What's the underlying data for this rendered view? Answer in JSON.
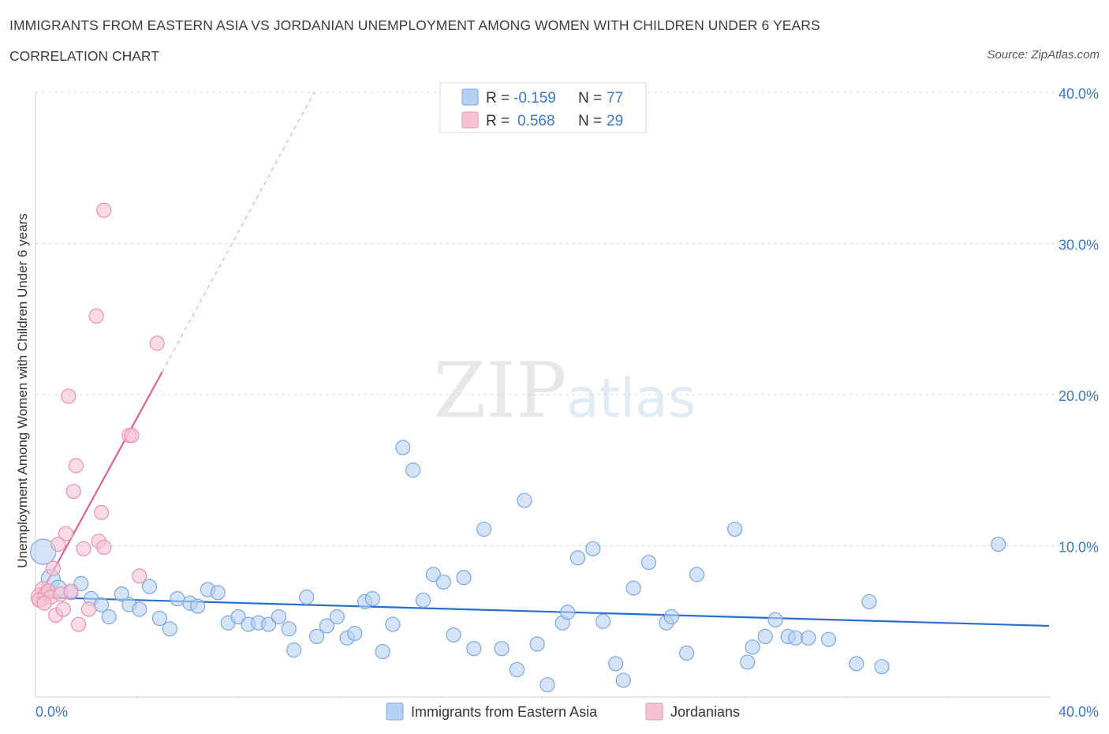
{
  "header": {
    "title": "IMMIGRANTS FROM EASTERN ASIA VS JORDANIAN UNEMPLOYMENT AMONG WOMEN WITH CHILDREN UNDER 6 YEARS",
    "subtitle": "CORRELATION CHART",
    "source": "Source: ZipAtlas.com"
  },
  "watermark": {
    "zip": "ZIP",
    "atlas": "atlas"
  },
  "colors": {
    "blue": "#7ba7e0",
    "blue_fill": "#b7d0f3",
    "blue_line": "#2a6fcf",
    "pink": "#ec8fae",
    "pink_fill": "#f6c3d4",
    "pink_line": "#e0638f",
    "grid": "#d9d9d9",
    "tick_text": "#3b78c9"
  },
  "legend": {
    "r_label": "R =",
    "n_label": "N =",
    "rows": [
      {
        "r": "-0.159",
        "n": "77"
      },
      {
        "r": "0.568",
        "n": "29"
      }
    ]
  },
  "bottom_legend": [
    {
      "label": "Immigrants from Eastern Asia"
    },
    {
      "label": "Jordanians"
    }
  ],
  "chart_data": {
    "type": "scatter",
    "ylabel": "Unemployment Among Women with Children Under 6 years",
    "xlim": [
      0,
      40
    ],
    "ylim": [
      0,
      40
    ],
    "x_tick_labels": [
      "0.0%",
      "40.0%"
    ],
    "y_tick_labels": [
      "10.0%",
      "20.0%",
      "30.0%",
      "40.0%"
    ],
    "y_ticks": [
      10,
      20,
      30,
      40
    ],
    "grid": true,
    "series": [
      {
        "name": "Immigrants from Eastern Asia",
        "R": -0.159,
        "N": 77,
        "trend": {
          "x": [
            0,
            40
          ],
          "y": [
            6.6,
            4.7
          ]
        },
        "points": [
          [
            0.3,
            9.6,
            16
          ],
          [
            0.6,
            7.8,
            12
          ],
          [
            0.9,
            7.2,
            10
          ],
          [
            1.4,
            6.9,
            9
          ],
          [
            1.8,
            7.5,
            9
          ],
          [
            2.2,
            6.5,
            9
          ],
          [
            2.6,
            6.1,
            9
          ],
          [
            2.9,
            5.3,
            9
          ],
          [
            3.4,
            6.8,
            9
          ],
          [
            3.7,
            6.1,
            9
          ],
          [
            4.1,
            5.8,
            9
          ],
          [
            4.5,
            7.3,
            9
          ],
          [
            4.9,
            5.2,
            9
          ],
          [
            5.3,
            4.5,
            9
          ],
          [
            5.6,
            6.5,
            9
          ],
          [
            6.1,
            6.2,
            9
          ],
          [
            6.4,
            6.0,
            9
          ],
          [
            6.8,
            7.1,
            9
          ],
          [
            7.2,
            6.9,
            9
          ],
          [
            7.6,
            4.9,
            9
          ],
          [
            8.0,
            5.3,
            9
          ],
          [
            8.4,
            4.8,
            9
          ],
          [
            8.8,
            4.9,
            9
          ],
          [
            9.2,
            4.8,
            9
          ],
          [
            9.6,
            5.3,
            9
          ],
          [
            10.0,
            4.5,
            9
          ],
          [
            10.2,
            3.1,
            9
          ],
          [
            10.7,
            6.6,
            9
          ],
          [
            11.1,
            4.0,
            9
          ],
          [
            11.5,
            4.7,
            9
          ],
          [
            11.9,
            5.3,
            9
          ],
          [
            12.3,
            3.9,
            9
          ],
          [
            12.6,
            4.2,
            9
          ],
          [
            13.0,
            6.3,
            9
          ],
          [
            13.3,
            6.5,
            9
          ],
          [
            13.7,
            3.0,
            9
          ],
          [
            14.1,
            4.8,
            9
          ],
          [
            14.5,
            16.5,
            9
          ],
          [
            14.9,
            15.0,
            9
          ],
          [
            15.3,
            6.4,
            9
          ],
          [
            15.7,
            8.1,
            9
          ],
          [
            16.1,
            7.6,
            9
          ],
          [
            16.5,
            4.1,
            9
          ],
          [
            16.9,
            7.9,
            9
          ],
          [
            17.3,
            3.2,
            9
          ],
          [
            17.7,
            11.1,
            9
          ],
          [
            18.4,
            3.2,
            9
          ],
          [
            19.0,
            1.8,
            9
          ],
          [
            19.3,
            13.0,
            9
          ],
          [
            19.8,
            3.5,
            9
          ],
          [
            20.2,
            0.8,
            9
          ],
          [
            20.8,
            4.9,
            9
          ],
          [
            21.0,
            5.6,
            9
          ],
          [
            21.4,
            9.2,
            9
          ],
          [
            22.0,
            9.8,
            9
          ],
          [
            22.4,
            5.0,
            9
          ],
          [
            22.9,
            2.2,
            9
          ],
          [
            23.2,
            1.1,
            9
          ],
          [
            23.6,
            7.2,
            9
          ],
          [
            24.2,
            8.9,
            9
          ],
          [
            24.9,
            4.9,
            9
          ],
          [
            25.1,
            5.3,
            9
          ],
          [
            25.7,
            2.9,
            9
          ],
          [
            26.1,
            8.1,
            9
          ],
          [
            27.6,
            11.1,
            9
          ],
          [
            28.1,
            2.3,
            9
          ],
          [
            28.3,
            3.3,
            9
          ],
          [
            28.8,
            4.0,
            9
          ],
          [
            29.2,
            5.1,
            9
          ],
          [
            29.7,
            4.0,
            9
          ],
          [
            30.0,
            3.9,
            9
          ],
          [
            30.5,
            3.9,
            9
          ],
          [
            31.3,
            3.8,
            9
          ],
          [
            32.4,
            2.2,
            9
          ],
          [
            32.9,
            6.3,
            9
          ],
          [
            33.4,
            2.0,
            9
          ],
          [
            38.0,
            10.1,
            9
          ]
        ]
      },
      {
        "name": "Jordanians",
        "R": 0.568,
        "N": 29,
        "trend": {
          "x": [
            0,
            5.0
          ],
          "y": [
            6.2,
            21.5
          ]
        },
        "trend_dashed": {
          "x": [
            5.0,
            11.0
          ],
          "y": [
            21.5,
            40.0
          ]
        },
        "points": [
          [
            0.2,
            6.6,
            12
          ],
          [
            0.3,
            7.1,
            10
          ],
          [
            0.4,
            6.8,
            9
          ],
          [
            0.5,
            7.0,
            9
          ],
          [
            0.6,
            6.6,
            9
          ],
          [
            0.7,
            8.5,
            9
          ],
          [
            0.8,
            5.4,
            9
          ],
          [
            0.9,
            10.1,
            9
          ],
          [
            1.0,
            6.8,
            9
          ],
          [
            1.1,
            5.8,
            9
          ],
          [
            1.2,
            10.8,
            9
          ],
          [
            1.3,
            19.9,
            9
          ],
          [
            1.4,
            7.0,
            9
          ],
          [
            1.5,
            13.6,
            9
          ],
          [
            1.6,
            15.3,
            9
          ],
          [
            1.7,
            4.8,
            9
          ],
          [
            1.9,
            9.8,
            9
          ],
          [
            2.1,
            5.8,
            9
          ],
          [
            2.4,
            25.2,
            9
          ],
          [
            2.5,
            10.3,
            9
          ],
          [
            2.6,
            12.2,
            9
          ],
          [
            2.7,
            9.9,
            9
          ],
          [
            2.7,
            32.2,
            9
          ],
          [
            3.7,
            17.3,
            9
          ],
          [
            3.8,
            17.3,
            9
          ],
          [
            4.1,
            8.0,
            9
          ],
          [
            4.8,
            23.4,
            9
          ],
          [
            0.15,
            6.4,
            9
          ],
          [
            0.35,
            6.2,
            9
          ]
        ]
      }
    ]
  }
}
